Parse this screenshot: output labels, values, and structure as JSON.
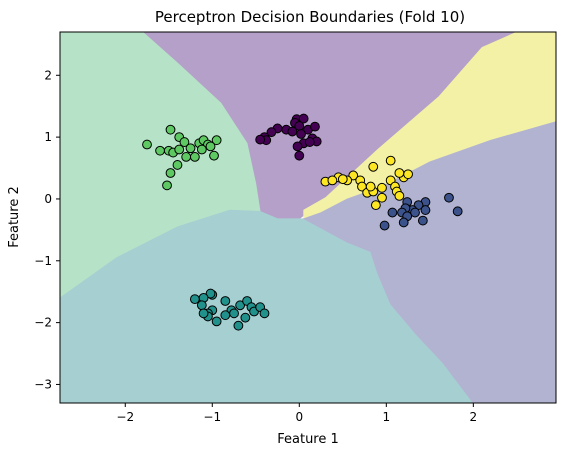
{
  "chart_data": {
    "type": "scatter",
    "title": "Perceptron Decision Boundaries (Fold 10)",
    "xlabel": "Feature 1",
    "ylabel": "Feature 2",
    "xlim": [
      -2.75,
      2.95
    ],
    "ylim": [
      -3.3,
      2.7
    ],
    "x_ticks": [
      -2,
      -1,
      0,
      1,
      2
    ],
    "y_ticks": [
      -3,
      -2,
      -1,
      0,
      1,
      2
    ],
    "grid": false,
    "background_regions": [
      {
        "name": "purple-region",
        "color": "#b4a0c8",
        "polygon": [
          [
            -1.8,
            2.7
          ],
          [
            2.5,
            2.7
          ],
          [
            1.8,
            1.6
          ],
          [
            1.2,
            0.8
          ],
          [
            0.35,
            0.05
          ],
          [
            0.0,
            -0.32
          ],
          [
            -0.25,
            -0.32
          ],
          [
            -0.45,
            -0.2
          ],
          [
            -0.5,
            0.25
          ],
          [
            -0.6,
            0.9
          ],
          [
            -0.9,
            1.55
          ],
          [
            -1.4,
            2.2
          ]
        ]
      },
      {
        "name": "yellow-region",
        "color": "#f2f1a6",
        "polygon": [
          [
            2.5,
            2.7
          ],
          [
            2.95,
            2.7
          ],
          [
            2.95,
            1.25
          ],
          [
            2.2,
            0.95
          ],
          [
            1.5,
            0.6
          ],
          [
            0.95,
            0.2
          ],
          [
            0.55,
            0.0
          ],
          [
            0.25,
            -0.22
          ],
          [
            0.05,
            -0.32
          ],
          [
            0.05,
            -0.18
          ],
          [
            0.3,
            0.02
          ],
          [
            0.9,
            0.8
          ],
          [
            1.6,
            1.65
          ],
          [
            2.1,
            2.45
          ]
        ]
      },
      {
        "name": "green-region",
        "color": "#b6e2c7",
        "polygon": [
          [
            -2.75,
            2.7
          ],
          [
            -1.8,
            2.7
          ],
          [
            -1.4,
            2.2
          ],
          [
            -0.9,
            1.55
          ],
          [
            -0.6,
            0.9
          ],
          [
            -0.5,
            0.25
          ],
          [
            -0.45,
            -0.2
          ],
          [
            -0.8,
            -0.18
          ],
          [
            -1.4,
            -0.45
          ],
          [
            -2.1,
            -0.95
          ],
          [
            -2.75,
            -1.6
          ]
        ]
      },
      {
        "name": "teal-region",
        "color": "#a6cfd2",
        "polygon": [
          [
            -2.75,
            -1.6
          ],
          [
            -2.1,
            -0.95
          ],
          [
            -1.4,
            -0.45
          ],
          [
            -0.8,
            -0.18
          ],
          [
            -0.45,
            -0.2
          ],
          [
            -0.25,
            -0.32
          ],
          [
            0.0,
            -0.32
          ],
          [
            0.05,
            -0.32
          ],
          [
            0.55,
            -0.7
          ],
          [
            0.82,
            -0.85
          ],
          [
            0.9,
            -1.2
          ],
          [
            1.05,
            -1.7
          ],
          [
            1.35,
            -2.2
          ],
          [
            1.65,
            -2.65
          ],
          [
            2.0,
            -3.3
          ],
          [
            -2.75,
            -3.3
          ]
        ]
      },
      {
        "name": "blue-region",
        "color": "#b2b3d1",
        "polygon": [
          [
            2.95,
            1.25
          ],
          [
            2.95,
            -3.3
          ],
          [
            2.0,
            -3.3
          ],
          [
            1.65,
            -2.65
          ],
          [
            1.35,
            -2.2
          ],
          [
            1.05,
            -1.7
          ],
          [
            0.9,
            -1.2
          ],
          [
            0.82,
            -0.85
          ],
          [
            0.55,
            -0.7
          ],
          [
            0.05,
            -0.32
          ],
          [
            0.25,
            -0.22
          ],
          [
            0.55,
            0.0
          ],
          [
            0.95,
            0.2
          ],
          [
            1.5,
            0.6
          ],
          [
            2.2,
            0.95
          ]
        ]
      }
    ],
    "series": [
      {
        "name": "purple-class",
        "color": "#440154",
        "points": [
          [
            -0.03,
            1.29
          ],
          [
            0.05,
            1.3
          ],
          [
            -0.05,
            1.23
          ],
          [
            0.0,
            1.18
          ],
          [
            0.1,
            1.12
          ],
          [
            0.18,
            1.17
          ],
          [
            -0.25,
            1.14
          ],
          [
            -0.32,
            1.08
          ],
          [
            -0.15,
            1.12
          ],
          [
            -0.08,
            1.09
          ],
          [
            0.02,
            1.05
          ],
          [
            -0.4,
            1.0
          ],
          [
            -0.38,
            0.95
          ],
          [
            0.15,
            0.98
          ],
          [
            0.05,
            0.9
          ],
          [
            -0.02,
            0.85
          ],
          [
            -0.45,
            0.96
          ],
          [
            0.2,
            0.93
          ],
          [
            0.12,
            0.92
          ],
          [
            0.0,
            0.7
          ]
        ]
      },
      {
        "name": "blue-class",
        "color": "#3b528b",
        "points": [
          [
            1.72,
            0.02
          ],
          [
            1.45,
            -0.05
          ],
          [
            1.37,
            -0.1
          ],
          [
            1.3,
            -0.18
          ],
          [
            1.24,
            -0.05
          ],
          [
            1.22,
            -0.15
          ],
          [
            1.18,
            -0.22
          ],
          [
            1.33,
            -0.22
          ],
          [
            1.45,
            -0.18
          ],
          [
            1.07,
            -0.22
          ],
          [
            0.98,
            -0.43
          ],
          [
            1.42,
            -0.35
          ],
          [
            1.82,
            -0.2
          ],
          [
            1.24,
            -0.28
          ],
          [
            1.2,
            -0.38
          ]
        ]
      },
      {
        "name": "teal-class",
        "color": "#21918c",
        "points": [
          [
            -1.0,
            -1.55
          ],
          [
            -1.02,
            -1.53
          ],
          [
            -1.1,
            -1.6
          ],
          [
            -1.12,
            -1.72
          ],
          [
            -1.0,
            -1.8
          ],
          [
            -1.05,
            -1.85
          ],
          [
            -0.85,
            -1.65
          ],
          [
            -0.78,
            -1.8
          ],
          [
            -0.75,
            -1.85
          ],
          [
            -0.68,
            -1.72
          ],
          [
            -0.6,
            -1.65
          ],
          [
            -0.55,
            -1.75
          ],
          [
            -0.52,
            -1.82
          ],
          [
            -0.45,
            -1.75
          ],
          [
            -0.4,
            -1.85
          ],
          [
            -0.62,
            -1.92
          ],
          [
            -0.85,
            -1.88
          ],
          [
            -0.95,
            -1.98
          ],
          [
            -1.05,
            -1.9
          ],
          [
            -0.7,
            -2.05
          ],
          [
            -1.1,
            -1.85
          ],
          [
            -1.2,
            -1.62
          ]
        ]
      },
      {
        "name": "green-class",
        "color": "#5ec962",
        "points": [
          [
            -1.75,
            0.88
          ],
          [
            -1.6,
            0.78
          ],
          [
            -1.48,
            1.12
          ],
          [
            -1.38,
            1.0
          ],
          [
            -1.32,
            0.92
          ],
          [
            -1.5,
            0.78
          ],
          [
            -1.45,
            0.75
          ],
          [
            -1.38,
            0.8
          ],
          [
            -1.3,
            0.68
          ],
          [
            -1.25,
            0.82
          ],
          [
            -1.15,
            0.9
          ],
          [
            -1.1,
            0.95
          ],
          [
            -1.05,
            0.88
          ],
          [
            -1.12,
            0.8
          ],
          [
            -1.2,
            0.68
          ],
          [
            -1.4,
            0.55
          ],
          [
            -1.48,
            0.42
          ],
          [
            -1.52,
            0.22
          ],
          [
            -0.95,
            0.95
          ],
          [
            -0.98,
            0.7
          ],
          [
            -1.02,
            0.85
          ]
        ]
      },
      {
        "name": "yellow-class",
        "color": "#fde725",
        "points": [
          [
            1.05,
            0.62
          ],
          [
            0.85,
            0.52
          ],
          [
            0.62,
            0.38
          ],
          [
            0.55,
            0.3
          ],
          [
            0.45,
            0.35
          ],
          [
            0.5,
            0.32
          ],
          [
            0.7,
            0.3
          ],
          [
            0.72,
            0.2
          ],
          [
            0.78,
            0.1
          ],
          [
            0.85,
            0.12
          ],
          [
            0.95,
            0.18
          ],
          [
            1.05,
            0.3
          ],
          [
            1.1,
            0.2
          ],
          [
            1.12,
            0.12
          ],
          [
            0.95,
            0.02
          ],
          [
            0.88,
            -0.1
          ],
          [
            1.15,
            0.05
          ],
          [
            1.2,
            0.35
          ],
          [
            1.25,
            0.4
          ],
          [
            1.15,
            0.42
          ],
          [
            0.82,
            0.2
          ],
          [
            0.3,
            0.28
          ],
          [
            0.38,
            0.3
          ]
        ]
      }
    ]
  }
}
